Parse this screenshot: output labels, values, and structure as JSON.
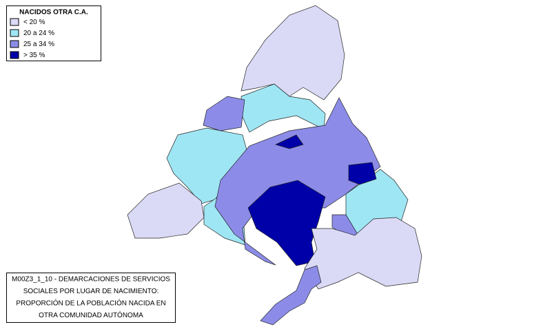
{
  "legend": {
    "title": "NACIDOS OTRA C.A.",
    "items": [
      {
        "label": "< 20 %",
        "color": "#dadaf6"
      },
      {
        "label": "20 a 24 %",
        "color": "#9fe6f4"
      },
      {
        "label": "25 a 34 %",
        "color": "#8c8ce8"
      },
      {
        "label": "> 35 %",
        "color": "#0000a8"
      }
    ]
  },
  "caption": {
    "lines": [
      "M00Z3_1_10 - DEMARCACIONES DE SERVICIOS",
      "SOCIALES POR LUGAR DE NACIMIENTO:",
      "PROPORCIÓN DE LA POBLACIÓN NACIDA EN",
      "OTRA COMUNIDAD AUTÓNOMA"
    ]
  }
}
